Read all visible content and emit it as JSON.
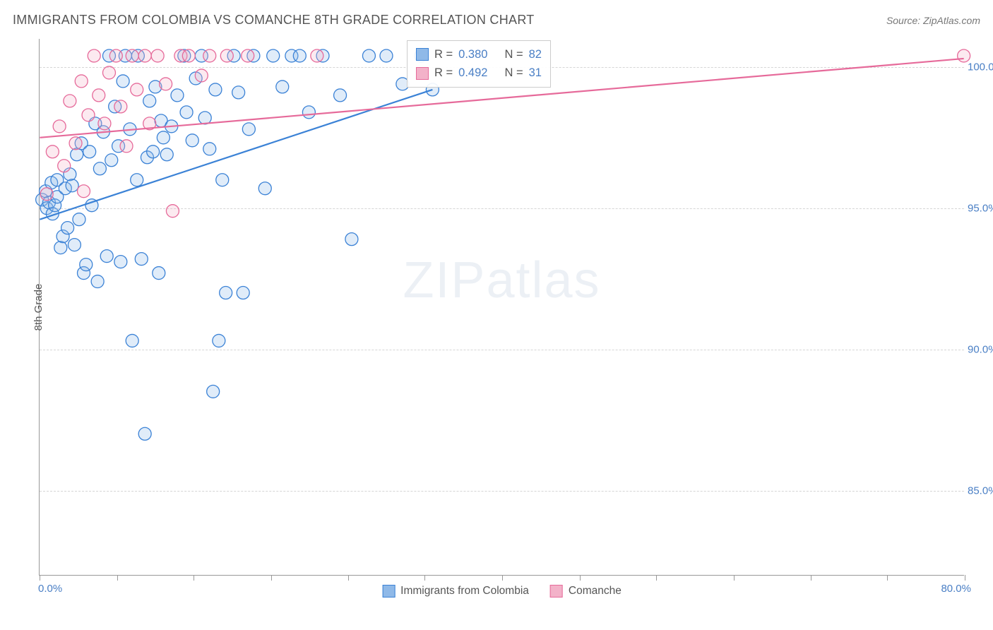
{
  "title": "IMMIGRANTS FROM COLOMBIA VS COMANCHE 8TH GRADE CORRELATION CHART",
  "source_label": "Source: ZipAtlas.com",
  "ylabel": "8th Grade",
  "watermark_bold": "ZIP",
  "watermark_light": "atlas",
  "chart": {
    "type": "scatter",
    "background_color": "#ffffff",
    "grid_color": "#d5d5d5",
    "axis_color": "#999999",
    "tick_label_color": "#4a7fc5",
    "xlim": [
      0,
      80
    ],
    "ylim": [
      82,
      101
    ],
    "x_min_label": "0.0%",
    "x_max_label": "80.0%",
    "x_ticks_pct": [
      0,
      6.7,
      13.3,
      20,
      26.7,
      33.3,
      40,
      46.7,
      53.3,
      60,
      66.7,
      73.3,
      80
    ],
    "y_gridlines": [
      {
        "value": 100,
        "label": "100.0%"
      },
      {
        "value": 95,
        "label": "95.0%"
      },
      {
        "value": 90,
        "label": "90.0%"
      },
      {
        "value": 85,
        "label": "85.0%"
      }
    ],
    "marker_radius": 9,
    "marker_stroke_width": 1.3,
    "marker_fill_opacity": 0.28,
    "trend_line_width": 2.2
  },
  "series": [
    {
      "key": "colombia",
      "label": "Immigrants from Colombia",
      "color_stroke": "#3b82d6",
      "color_fill": "#8fb9e8",
      "r_value": "0.380",
      "n_value": "82",
      "trend": {
        "x1": 0,
        "y1": 94.6,
        "x2": 34,
        "y2": 99.2
      },
      "points": [
        [
          0.2,
          95.3
        ],
        [
          0.5,
          95.6
        ],
        [
          0.6,
          95.0
        ],
        [
          0.8,
          95.2
        ],
        [
          1.0,
          95.9
        ],
        [
          1.1,
          94.8
        ],
        [
          1.3,
          95.1
        ],
        [
          1.5,
          96.0
        ],
        [
          1.5,
          95.4
        ],
        [
          1.8,
          93.6
        ],
        [
          2.0,
          94.0
        ],
        [
          2.2,
          95.7
        ],
        [
          2.4,
          94.3
        ],
        [
          2.6,
          96.2
        ],
        [
          2.8,
          95.8
        ],
        [
          3.0,
          93.7
        ],
        [
          3.2,
          96.9
        ],
        [
          3.4,
          94.6
        ],
        [
          3.6,
          97.3
        ],
        [
          3.8,
          92.7
        ],
        [
          4.0,
          93.0
        ],
        [
          4.3,
          97.0
        ],
        [
          4.5,
          95.1
        ],
        [
          4.8,
          98.0
        ],
        [
          5.0,
          92.4
        ],
        [
          5.2,
          96.4
        ],
        [
          5.5,
          97.7
        ],
        [
          5.8,
          93.3
        ],
        [
          6.0,
          100.4
        ],
        [
          6.2,
          96.7
        ],
        [
          6.5,
          98.6
        ],
        [
          6.8,
          97.2
        ],
        [
          7.0,
          93.1
        ],
        [
          7.2,
          99.5
        ],
        [
          7.4,
          100.4
        ],
        [
          7.8,
          97.8
        ],
        [
          8.0,
          90.3
        ],
        [
          8.4,
          96.0
        ],
        [
          8.5,
          100.4
        ],
        [
          8.8,
          93.2
        ],
        [
          9.1,
          87.0
        ],
        [
          9.3,
          96.8
        ],
        [
          9.5,
          98.8
        ],
        [
          9.8,
          97.0
        ],
        [
          10.0,
          99.3
        ],
        [
          10.3,
          92.7
        ],
        [
          10.5,
          98.1
        ],
        [
          10.7,
          97.5
        ],
        [
          11.0,
          96.9
        ],
        [
          11.4,
          97.9
        ],
        [
          11.9,
          99.0
        ],
        [
          12.5,
          100.4
        ],
        [
          12.7,
          98.4
        ],
        [
          13.2,
          97.4
        ],
        [
          13.5,
          99.6
        ],
        [
          14.0,
          100.4
        ],
        [
          14.3,
          98.2
        ],
        [
          14.7,
          97.1
        ],
        [
          15.0,
          88.5
        ],
        [
          15.2,
          99.2
        ],
        [
          15.5,
          90.3
        ],
        [
          15.8,
          96.0
        ],
        [
          16.1,
          92.0
        ],
        [
          16.8,
          100.4
        ],
        [
          17.2,
          99.1
        ],
        [
          17.6,
          92.0
        ],
        [
          18.1,
          97.8
        ],
        [
          18.5,
          100.4
        ],
        [
          19.5,
          95.7
        ],
        [
          20.2,
          100.4
        ],
        [
          21.0,
          99.3
        ],
        [
          21.8,
          100.4
        ],
        [
          22.5,
          100.4
        ],
        [
          23.3,
          98.4
        ],
        [
          24.5,
          100.4
        ],
        [
          26.0,
          99.0
        ],
        [
          27.0,
          93.9
        ],
        [
          28.5,
          100.4
        ],
        [
          30.0,
          100.4
        ],
        [
          31.4,
          99.4
        ],
        [
          33.0,
          100.4
        ],
        [
          34.0,
          99.2
        ]
      ]
    },
    {
      "key": "comanche",
      "label": "Comanche",
      "color_stroke": "#e66a9a",
      "color_fill": "#f3b2c9",
      "r_value": "0.492",
      "n_value": "31",
      "trend": {
        "x1": 0,
        "y1": 97.5,
        "x2": 80,
        "y2": 100.3
      },
      "points": [
        [
          0.6,
          95.5
        ],
        [
          1.1,
          97.0
        ],
        [
          1.7,
          97.9
        ],
        [
          2.1,
          96.5
        ],
        [
          2.6,
          98.8
        ],
        [
          3.1,
          97.3
        ],
        [
          3.6,
          99.5
        ],
        [
          3.8,
          95.6
        ],
        [
          4.2,
          98.3
        ],
        [
          4.7,
          100.4
        ],
        [
          5.1,
          99.0
        ],
        [
          5.6,
          98.0
        ],
        [
          6.0,
          99.8
        ],
        [
          6.6,
          100.4
        ],
        [
          7.0,
          98.6
        ],
        [
          7.5,
          97.2
        ],
        [
          8.0,
          100.4
        ],
        [
          8.4,
          99.2
        ],
        [
          9.1,
          100.4
        ],
        [
          9.5,
          98.0
        ],
        [
          10.2,
          100.4
        ],
        [
          10.9,
          99.4
        ],
        [
          11.5,
          94.9
        ],
        [
          12.2,
          100.4
        ],
        [
          12.9,
          100.4
        ],
        [
          14.0,
          99.7
        ],
        [
          14.7,
          100.4
        ],
        [
          16.2,
          100.4
        ],
        [
          18.0,
          100.4
        ],
        [
          24.0,
          100.4
        ],
        [
          80.0,
          100.4
        ]
      ]
    }
  ],
  "stats_labels": {
    "r": "R =",
    "n": "N ="
  }
}
